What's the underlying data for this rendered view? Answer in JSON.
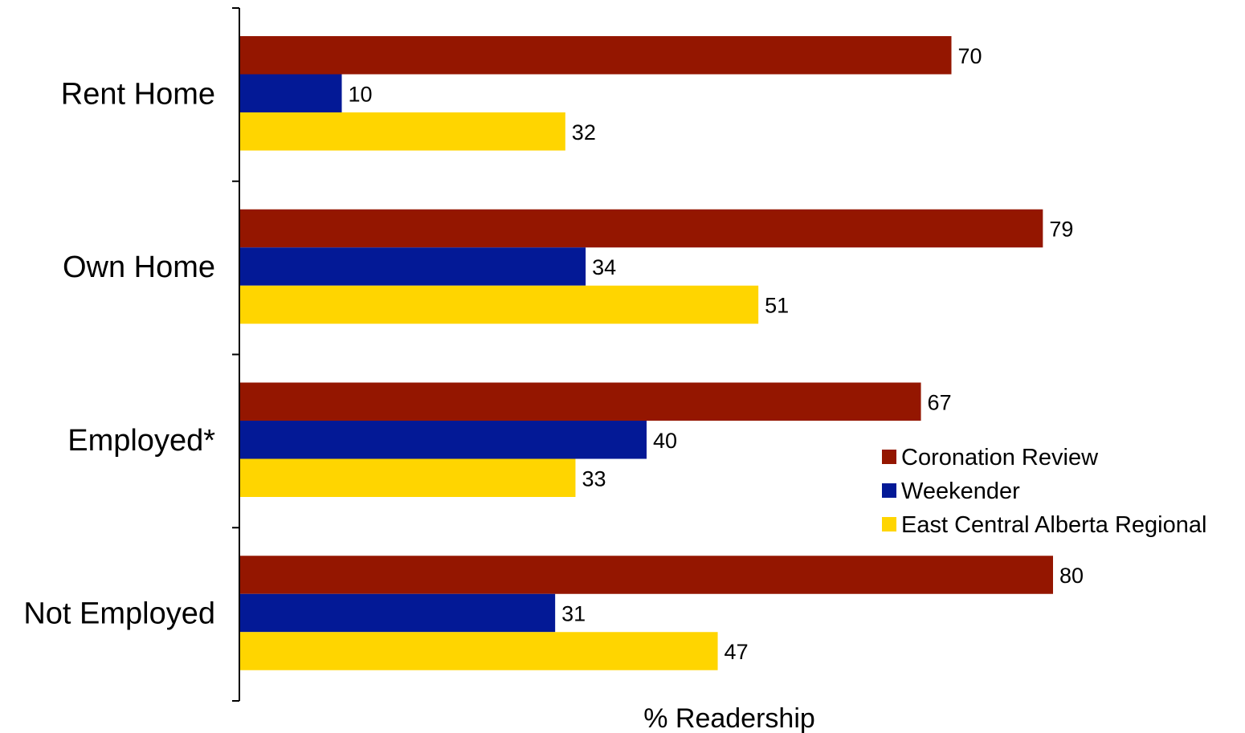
{
  "chart_data": {
    "type": "bar",
    "orientation": "horizontal",
    "categories": [
      "Rent Home",
      "Own Home",
      "Employed*",
      "Not Employed"
    ],
    "series": [
      {
        "name": "Coronation Review",
        "color": "#941600",
        "values": [
          70,
          79,
          67,
          80
        ]
      },
      {
        "name": "Weekender",
        "color": "#031996",
        "values": [
          10,
          34,
          40,
          31
        ]
      },
      {
        "name": "East Central Alberta Regional",
        "color": "#FFD500",
        "values": [
          32,
          51,
          33,
          47
        ]
      }
    ],
    "xlabel": "% Readership",
    "xlim": [
      0,
      100
    ],
    "grid": false,
    "legend_position": "right"
  }
}
